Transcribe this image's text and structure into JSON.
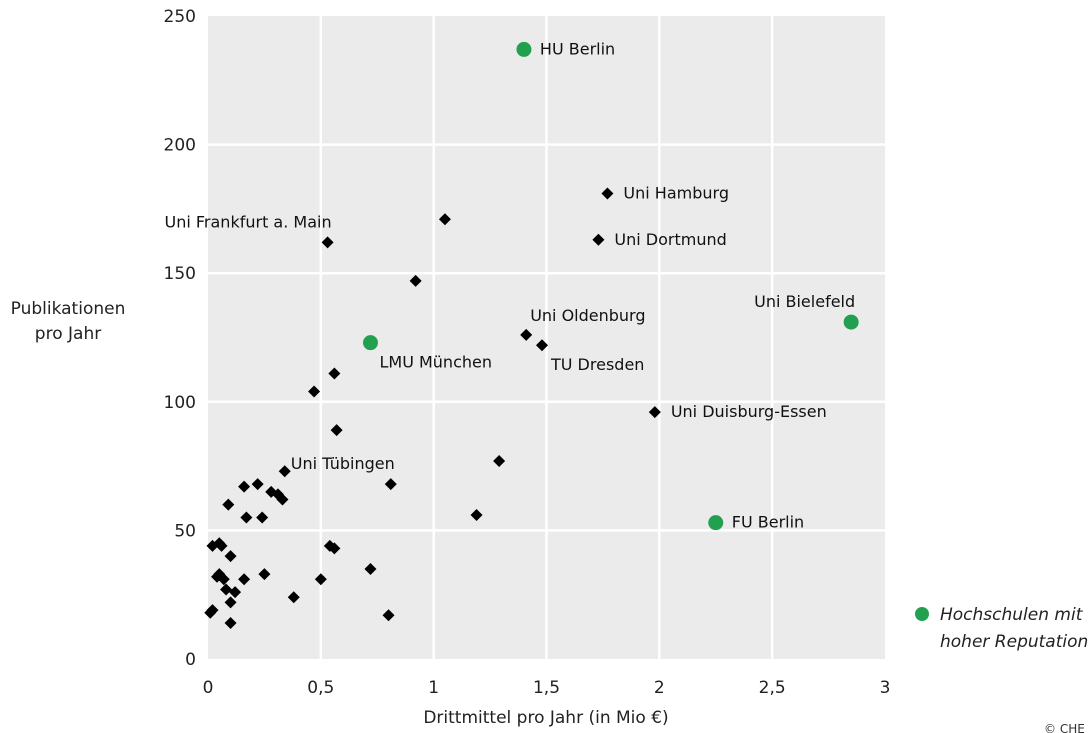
{
  "chart_data": {
    "type": "scatter",
    "xlabel": "Drittmittel pro Jahr (in Mio €)",
    "ylabel_lines": [
      "Publikationen",
      "pro Jahr"
    ],
    "xlim": [
      0,
      3
    ],
    "ylim": [
      0,
      250
    ],
    "x_ticks": [
      0,
      0.5,
      1,
      1.5,
      2,
      2.5,
      3
    ],
    "x_tick_labels": [
      "0",
      "0,5",
      "1",
      "1,5",
      "2",
      "2,5",
      "3"
    ],
    "y_ticks": [
      0,
      50,
      100,
      150,
      200,
      250
    ],
    "y_tick_labels": [
      "0",
      "50",
      "100",
      "150",
      "200",
      "250"
    ],
    "grid": true,
    "background_color": "#ebebeb",
    "highlight_color": "#22a050",
    "point_color": "#000000",
    "legend": {
      "position": "bottom-right",
      "lines": [
        "Hochschulen mit",
        "hoher Reputation"
      ]
    },
    "series": [
      {
        "name": "Hochschulen mit hoher Reputation",
        "marker": "circle",
        "points": [
          {
            "x": 1.4,
            "y": 237,
            "label": "HU Berlin",
            "label_pos": "right"
          },
          {
            "x": 2.85,
            "y": 131,
            "label": "Uni Bielefeld",
            "label_pos": "above-left"
          },
          {
            "x": 0.72,
            "y": 123,
            "label": "LMU München",
            "label_pos": "below-right"
          },
          {
            "x": 2.25,
            "y": 53,
            "label": "FU Berlin",
            "label_pos": "right"
          }
        ]
      },
      {
        "marker": "diamond",
        "points": [
          {
            "x": 1.77,
            "y": 181,
            "label": "Uni Hamburg",
            "label_pos": "right"
          },
          {
            "x": 1.73,
            "y": 163,
            "label": "Uni Dortmund",
            "label_pos": "right"
          },
          {
            "x": 0.53,
            "y": 162,
            "label": "Uni Frankfurt a. Main",
            "label_pos": "above-left"
          },
          {
            "x": 1.41,
            "y": 126,
            "label": "Uni Oldenburg",
            "label_pos": "above-right"
          },
          {
            "x": 1.48,
            "y": 122,
            "label": "TU Dresden",
            "label_pos": "below-right"
          },
          {
            "x": 1.98,
            "y": 96,
            "label": "Uni Duisburg-Essen",
            "label_pos": "right"
          },
          {
            "x": 0.81,
            "y": 68,
            "label": "Uni Tübingen",
            "label_pos": "above-left"
          },
          {
            "x": 1.05,
            "y": 171
          },
          {
            "x": 0.92,
            "y": 147
          },
          {
            "x": 0.56,
            "y": 111
          },
          {
            "x": 0.47,
            "y": 104
          },
          {
            "x": 0.57,
            "y": 89
          },
          {
            "x": 1.29,
            "y": 77
          },
          {
            "x": 1.19,
            "y": 56
          },
          {
            "x": 0.34,
            "y": 73
          },
          {
            "x": 0.22,
            "y": 68
          },
          {
            "x": 0.16,
            "y": 67
          },
          {
            "x": 0.28,
            "y": 65
          },
          {
            "x": 0.31,
            "y": 64
          },
          {
            "x": 0.33,
            "y": 62
          },
          {
            "x": 0.09,
            "y": 60
          },
          {
            "x": 0.17,
            "y": 55
          },
          {
            "x": 0.24,
            "y": 55
          },
          {
            "x": 0.54,
            "y": 44
          },
          {
            "x": 0.56,
            "y": 43
          },
          {
            "x": 0.02,
            "y": 44
          },
          {
            "x": 0.05,
            "y": 45
          },
          {
            "x": 0.06,
            "y": 44
          },
          {
            "x": 0.1,
            "y": 40
          },
          {
            "x": 0.72,
            "y": 35
          },
          {
            "x": 0.25,
            "y": 33
          },
          {
            "x": 0.5,
            "y": 31
          },
          {
            "x": 0.04,
            "y": 32
          },
          {
            "x": 0.05,
            "y": 33
          },
          {
            "x": 0.07,
            "y": 31
          },
          {
            "x": 0.16,
            "y": 31
          },
          {
            "x": 0.08,
            "y": 27
          },
          {
            "x": 0.12,
            "y": 26
          },
          {
            "x": 0.38,
            "y": 24
          },
          {
            "x": 0.1,
            "y": 22
          },
          {
            "x": 0.02,
            "y": 19
          },
          {
            "x": 0.01,
            "y": 18
          },
          {
            "x": 0.8,
            "y": 17
          },
          {
            "x": 0.1,
            "y": 14
          }
        ]
      }
    ]
  },
  "footer": {
    "copyright": "© CHE"
  }
}
